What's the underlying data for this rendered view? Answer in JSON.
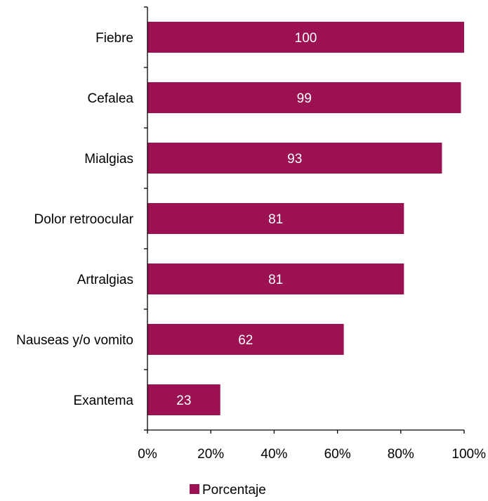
{
  "chart_data": {
    "type": "bar",
    "orientation": "horizontal",
    "categories": [
      "Fiebre",
      "Cefalea",
      "Mialgias",
      "Dolor retroocular",
      "Artralgias",
      "Nauseas y/o vomito",
      "Exantema"
    ],
    "series": [
      {
        "name": "Porcentaje",
        "values": [
          100,
          99,
          93,
          81,
          81,
          62,
          23
        ],
        "data_labels": [
          "100",
          "99",
          "93",
          "81",
          "81",
          "62",
          "23"
        ],
        "color": "#9b1152"
      }
    ],
    "xlim": [
      0,
      100
    ],
    "xticks": [
      "0%",
      "20%",
      "40%",
      "60%",
      "80%",
      "100%"
    ],
    "title": "",
    "xlabel": "",
    "ylabel": "",
    "grid": false,
    "legend": {
      "position": "bottom",
      "entries": [
        "Porcentaje"
      ]
    }
  }
}
